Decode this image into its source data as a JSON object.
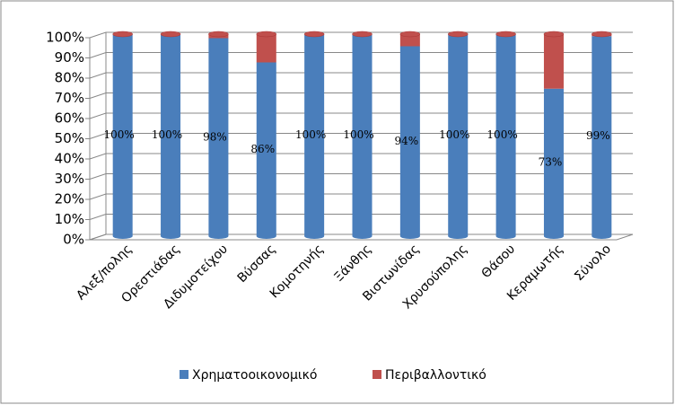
{
  "chart_data": {
    "type": "bar",
    "stacked": true,
    "categories": [
      "Αλεξ/πολης",
      "Ορεστιάδας",
      "Διδυμοτείχου",
      "Βύσσας",
      "Κομοτηνής",
      "Ξάνθης",
      "Βιστωνίδας",
      "Χρυσούπολης",
      "Θάσου",
      "Κεραμωτής",
      "Σύνολο"
    ],
    "series": [
      {
        "name": "Χρηματοοικονομικό",
        "color": "#4a7ebb",
        "values": [
          100,
          100,
          98,
          86,
          100,
          100,
          94,
          100,
          100,
          73,
          99
        ],
        "value_labels": [
          "100%",
          "100%",
          "98%",
          "86%",
          "100%",
          "100%",
          "94%",
          "100%",
          "100%",
          "73%",
          "99%"
        ]
      },
      {
        "name": "Περιβαλλοντικό",
        "color": "#c0504d",
        "values": [
          0,
          0,
          2,
          14,
          0,
          0,
          6,
          0,
          0,
          27,
          1
        ]
      }
    ],
    "ylim": [
      0,
      100
    ],
    "yticks": [
      {
        "value": 0,
        "label": "0%"
      },
      {
        "value": 10,
        "label": "10%"
      },
      {
        "value": 20,
        "label": "20%"
      },
      {
        "value": 30,
        "label": "30%"
      },
      {
        "value": 40,
        "label": "40%"
      },
      {
        "value": 50,
        "label": "50%"
      },
      {
        "value": 60,
        "label": "60%"
      },
      {
        "value": 70,
        "label": "70%"
      },
      {
        "value": 80,
        "label": "80%"
      },
      {
        "value": 90,
        "label": "90%"
      },
      {
        "value": 100,
        "label": "100%"
      }
    ],
    "grid": true,
    "legend": "bottom"
  }
}
